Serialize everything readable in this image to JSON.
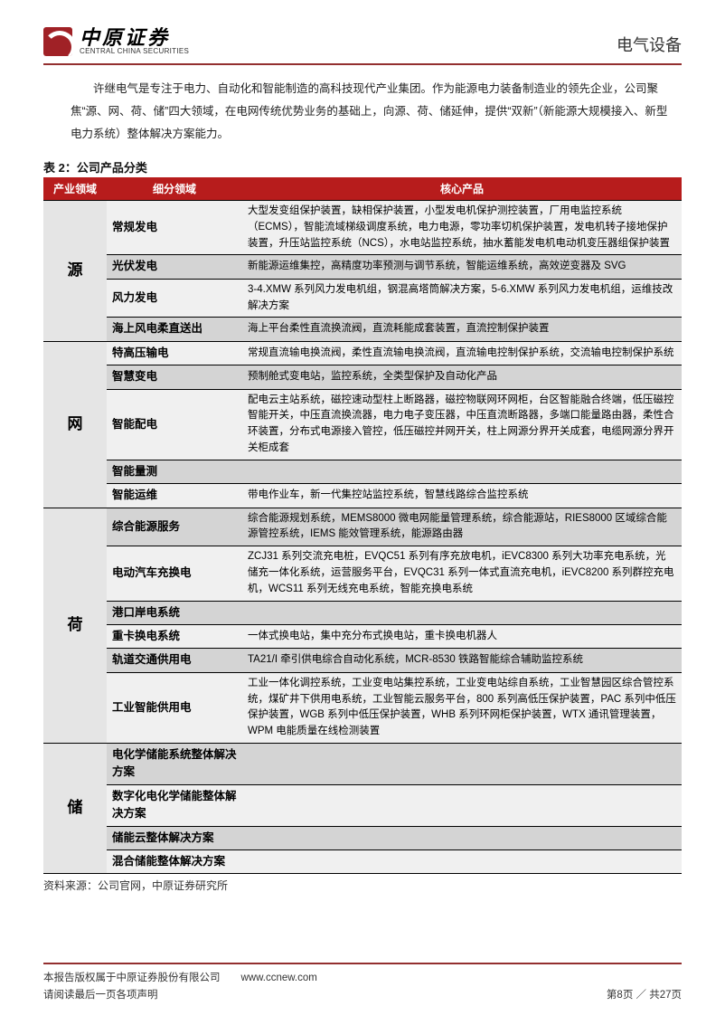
{
  "header": {
    "logo_cn": "中原证券",
    "logo_en": "CENTRAL CHINA SECURITIES",
    "category": "电气设备"
  },
  "intro": "许继电气是专注于电力、自动化和智能制造的高科技现代产业集团。作为能源电力装备制造业的领先企业，公司聚焦“源、网、荷、储”四大领域，在电网传统优势业务的基础上，向源、荷、储延伸，提供“双新”（新能源大规模接入、新型电力系统）整体解决方案能力。",
  "table": {
    "caption": "表 2：公司产品分类",
    "headers": [
      "产业领域",
      "细分领域",
      "核心产品"
    ],
    "colors": {
      "header_bg": "#b71c1c",
      "header_fg": "#ffffff",
      "domain_bg": "#e5e5e5",
      "row_dark": "#d4d4d4",
      "row_light": "#f0f0f0",
      "border": "#000000"
    },
    "groups": [
      {
        "domain": "源",
        "rows": [
          {
            "shade": "light",
            "sub": "常规发电",
            "prod": "大型发变组保护装置，缺相保护装置，小型发电机保护测控装置，厂用电监控系统（ECMS），智能流域梯级调度系统，电力电源，零功率切机保护装置，发电机转子接地保护装置，升压站监控系统（NCS），水电站监控系统，抽水蓄能发电机电动机变压器组保护装置"
          },
          {
            "shade": "dark",
            "sub": "光伏发电",
            "prod": "新能源运维集控，高精度功率预测与调节系统，智能运维系统，高效逆变器及 SVG"
          },
          {
            "shade": "light",
            "sub": "风力发电",
            "prod": "3-4.XMW 系列风力发电机组，钢混高塔筒解决方案，5-6.XMW 系列风力发电机组，运维技改解决方案"
          },
          {
            "shade": "dark",
            "sub": "海上风电柔直送出",
            "prod": "海上平台柔性直流换流阀，直流耗能成套装置，直流控制保护装置"
          }
        ]
      },
      {
        "domain": "网",
        "rows": [
          {
            "shade": "light",
            "sub": "特高压输电",
            "prod": "常规直流输电换流阀，柔性直流输电换流阀，直流输电控制保护系统，交流输电控制保护系统"
          },
          {
            "shade": "dark",
            "sub": "智慧变电",
            "prod": "预制舱式变电站，监控系统，全类型保护及自动化产品"
          },
          {
            "shade": "light",
            "sub": "智能配电",
            "prod": "配电云主站系统，磁控速动型柱上断路器，磁控物联网环网柜，台区智能融合终端，低压磁控智能开关，中压直流换流器，电力电子变压器，中压直流断路器，多端口能量路由器，柔性合环装置，分布式电源接入管控，低压磁控并网开关，柱上网源分界开关成套，电缆网源分界开关柜成套"
          },
          {
            "shade": "dark",
            "sub": "智能量测",
            "prod": ""
          },
          {
            "shade": "light",
            "sub": "智能运维",
            "prod": "带电作业车，新一代集控站监控系统，智慧线路综合监控系统"
          }
        ]
      },
      {
        "domain": "荷",
        "rows": [
          {
            "shade": "dark",
            "sub": "综合能源服务",
            "prod": "综合能源规划系统，MEMS8000 微电网能量管理系统，综合能源站，RIES8000 区域综合能源管控系统，IEMS 能效管理系统，能源路由器"
          },
          {
            "shade": "light",
            "sub": "电动汽车充换电",
            "prod": "ZCJ31 系列交流充电桩，EVQC51 系列有序充放电机，iEVC8300 系列大功率充电系统，光储充一体化系统，运营服务平台，EVQC31 系列一体式直流充电机，iEVC8200 系列群控充电机，WCS11 系列无线充电系统，智能充换电系统"
          },
          {
            "shade": "dark",
            "sub": "港口岸电系统",
            "prod": ""
          },
          {
            "shade": "light",
            "sub": "重卡换电系统",
            "prod": "一体式换电站，集中充分布式换电站，重卡换电机器人"
          },
          {
            "shade": "dark",
            "sub": "轨道交通供用电",
            "prod": "TA21/I 牵引供电综合自动化系统，MCR-8530 铁路智能综合辅助监控系统"
          },
          {
            "shade": "light",
            "sub": "工业智能供用电",
            "prod": "工业一体化调控系统，工业变电站集控系统，工业变电站综自系统，工业智慧园区综合管控系统，煤矿井下供用电系统，工业智能云服务平台，800 系列高低压保护装置，PAC 系列中低压保护装置，WGB 系列中低压保护装置，WHB 系列环网柜保护装置，WTX 通讯管理装置，WPM 电能质量在线检测装置"
          }
        ]
      },
      {
        "domain": "储",
        "rows": [
          {
            "shade": "dark",
            "sub": "电化学储能系统整体解决方案",
            "prod": ""
          },
          {
            "shade": "light",
            "sub": "数字化电化学储能整体解决方案",
            "prod": ""
          },
          {
            "shade": "dark",
            "sub": "储能云整体解决方案",
            "prod": ""
          },
          {
            "shade": "light",
            "sub": "混合储能整体解决方案",
            "prod": ""
          }
        ]
      }
    ]
  },
  "source": "资料来源：公司官网，中原证券研究所",
  "footer": {
    "line1": "本报告版权属于中原证券股份有限公司　　www.ccnew.com",
    "line2": "请阅读最后一页各项声明",
    "page": "第8页 ／ 共27页"
  }
}
